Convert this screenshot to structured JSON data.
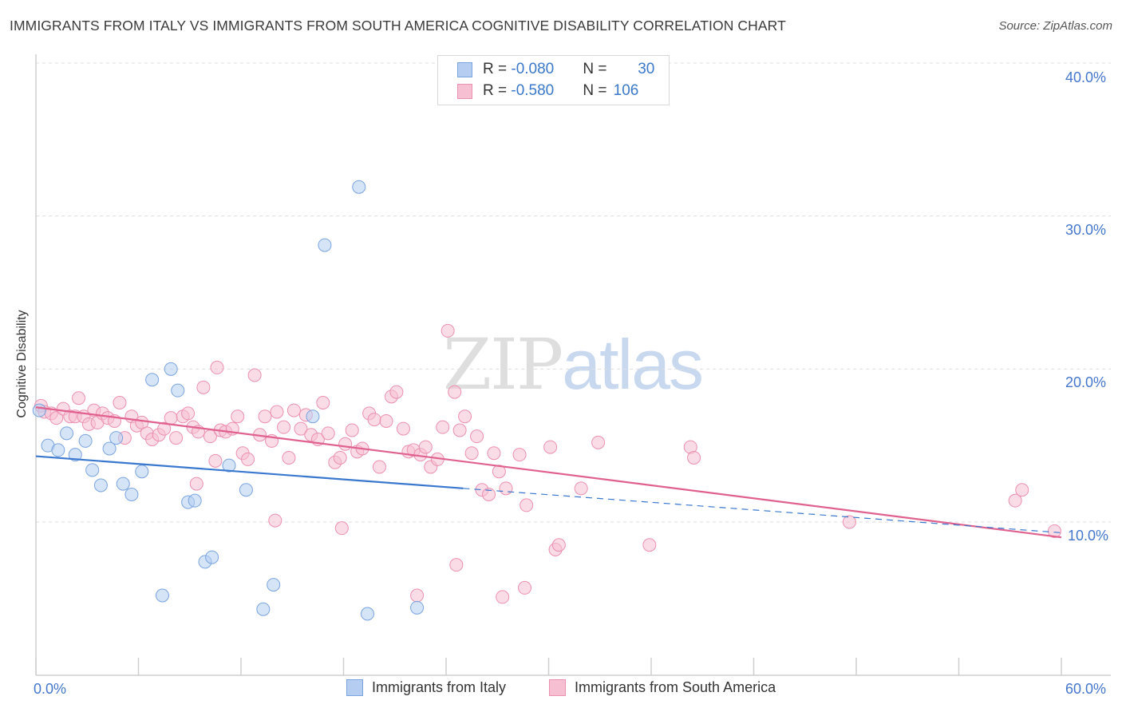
{
  "header": {
    "title": "IMMIGRANTS FROM ITALY VS IMMIGRANTS FROM SOUTH AMERICA COGNITIVE DISABILITY CORRELATION CHART",
    "source": "Source: ZipAtlas.com"
  },
  "watermark": {
    "zip": "ZIP",
    "atlas": "atlas"
  },
  "legend": {
    "italy": {
      "r_label": "R = ",
      "r_value": "-0.080",
      "n_label": "N = ",
      "n_value": "30"
    },
    "south_america": {
      "r_label": "R = ",
      "r_value": "-0.580",
      "n_label": "N = ",
      "n_value": "106"
    }
  },
  "colors": {
    "italy_fill": "#b5cdf0",
    "italy_stroke": "#7aa4df",
    "italy_line": "#3a78d0",
    "sa_fill": "#f6c0d2",
    "sa_stroke": "#ec90b0",
    "sa_line": "#e0608e",
    "grid": "#dddddd",
    "axis_text": "#4477cc"
  },
  "chart_data": {
    "type": "scatter",
    "title": "IMMIGRANTS FROM ITALY VS IMMIGRANTS FROM SOUTH AMERICA COGNITIVE DISABILITY CORRELATION CHART",
    "ylabel": "Cognitive Disability",
    "xlabel": "",
    "xlim": [
      0,
      60
    ],
    "ylim": [
      0,
      42
    ],
    "x_tick_labels": [
      "0.0%",
      "60.0%"
    ],
    "y_ticks": [
      10,
      20,
      30,
      40
    ],
    "y_tick_labels": [
      "10.0%",
      "20.0%",
      "30.0%",
      "40.0%"
    ],
    "grid": true,
    "legend_position": "top-center",
    "series": [
      {
        "name": "Immigrants from Italy",
        "trend": {
          "x0": 0,
          "y0": 14.3,
          "x1": 25,
          "y1": 12.2,
          "dashed_to_x": 60,
          "dashed_to_y": 9.3
        },
        "points": [
          [
            0.2,
            17.3
          ],
          [
            0.7,
            15.0
          ],
          [
            1.3,
            14.7
          ],
          [
            1.8,
            15.8
          ],
          [
            2.3,
            14.4
          ],
          [
            2.9,
            15.3
          ],
          [
            3.3,
            13.4
          ],
          [
            3.8,
            12.4
          ],
          [
            4.3,
            14.8
          ],
          [
            4.7,
            15.5
          ],
          [
            5.1,
            12.5
          ],
          [
            5.6,
            11.8
          ],
          [
            6.2,
            13.3
          ],
          [
            6.8,
            19.3
          ],
          [
            7.4,
            5.2
          ],
          [
            7.9,
            20.0
          ],
          [
            8.3,
            18.6
          ],
          [
            8.9,
            11.3
          ],
          [
            9.3,
            11.4
          ],
          [
            9.9,
            7.4
          ],
          [
            10.3,
            7.7
          ],
          [
            11.3,
            13.7
          ],
          [
            12.3,
            12.1
          ],
          [
            13.3,
            4.3
          ],
          [
            13.9,
            5.9
          ],
          [
            16.2,
            16.9
          ],
          [
            16.9,
            28.1
          ],
          [
            18.9,
            31.9
          ],
          [
            19.4,
            4.0
          ],
          [
            22.3,
            4.4
          ]
        ]
      },
      {
        "name": "Immigrants from South America",
        "trend": {
          "x0": 0,
          "y0": 17.5,
          "x1": 60,
          "y1": 9.0
        },
        "points": [
          [
            0.3,
            17.6
          ],
          [
            0.5,
            17.2
          ],
          [
            0.9,
            17.1
          ],
          [
            1.2,
            16.8
          ],
          [
            1.6,
            17.4
          ],
          [
            2.0,
            16.9
          ],
          [
            2.3,
            16.9
          ],
          [
            2.5,
            18.1
          ],
          [
            2.8,
            16.9
          ],
          [
            3.1,
            16.4
          ],
          [
            3.4,
            17.3
          ],
          [
            3.6,
            16.5
          ],
          [
            3.9,
            17.1
          ],
          [
            4.2,
            16.8
          ],
          [
            4.6,
            16.6
          ],
          [
            4.9,
            17.8
          ],
          [
            5.2,
            15.5
          ],
          [
            5.6,
            16.9
          ],
          [
            5.9,
            16.3
          ],
          [
            6.2,
            16.5
          ],
          [
            6.5,
            15.8
          ],
          [
            6.8,
            15.4
          ],
          [
            7.2,
            15.7
          ],
          [
            7.5,
            16.1
          ],
          [
            7.9,
            16.8
          ],
          [
            8.2,
            15.5
          ],
          [
            8.6,
            16.9
          ],
          [
            8.9,
            17.1
          ],
          [
            9.2,
            16.2
          ],
          [
            9.5,
            15.9
          ],
          [
            9.8,
            18.8
          ],
          [
            10.2,
            15.6
          ],
          [
            10.5,
            14.0
          ],
          [
            10.8,
            16.0
          ],
          [
            11.1,
            15.9
          ],
          [
            11.5,
            16.1
          ],
          [
            11.8,
            16.9
          ],
          [
            12.1,
            14.5
          ],
          [
            12.4,
            14.1
          ],
          [
            12.8,
            19.6
          ],
          [
            13.1,
            15.7
          ],
          [
            13.4,
            16.9
          ],
          [
            13.8,
            15.3
          ],
          [
            14.1,
            17.2
          ],
          [
            14.5,
            16.2
          ],
          [
            14.8,
            14.2
          ],
          [
            15.1,
            17.3
          ],
          [
            15.5,
            16.1
          ],
          [
            15.8,
            17.0
          ],
          [
            16.1,
            15.7
          ],
          [
            16.5,
            15.4
          ],
          [
            16.8,
            17.8
          ],
          [
            17.1,
            15.8
          ],
          [
            17.5,
            13.9
          ],
          [
            17.8,
            14.2
          ],
          [
            18.1,
            15.1
          ],
          [
            18.5,
            16.0
          ],
          [
            18.8,
            14.6
          ],
          [
            19.1,
            14.8
          ],
          [
            19.5,
            17.1
          ],
          [
            19.8,
            16.7
          ],
          [
            20.1,
            13.6
          ],
          [
            20.5,
            16.6
          ],
          [
            20.8,
            18.2
          ],
          [
            21.1,
            18.5
          ],
          [
            21.5,
            16.1
          ],
          [
            21.8,
            14.6
          ],
          [
            22.1,
            14.7
          ],
          [
            22.5,
            14.4
          ],
          [
            22.8,
            14.9
          ],
          [
            23.1,
            13.6
          ],
          [
            23.5,
            14.1
          ],
          [
            23.8,
            16.2
          ],
          [
            24.1,
            22.5
          ],
          [
            24.5,
            18.5
          ],
          [
            24.8,
            16.0
          ],
          [
            25.1,
            16.9
          ],
          [
            25.5,
            14.5
          ],
          [
            25.8,
            15.6
          ],
          [
            26.1,
            12.1
          ],
          [
            26.5,
            11.8
          ],
          [
            26.8,
            14.5
          ],
          [
            27.1,
            13.3
          ],
          [
            27.5,
            12.2
          ],
          [
            28.3,
            14.4
          ],
          [
            28.7,
            11.1
          ],
          [
            30.1,
            14.9
          ],
          [
            30.4,
            8.2
          ],
          [
            30.6,
            8.5
          ],
          [
            31.9,
            12.2
          ],
          [
            32.9,
            15.2
          ],
          [
            35.9,
            8.5
          ],
          [
            38.3,
            14.9
          ],
          [
            38.5,
            14.2
          ],
          [
            47.6,
            10.0
          ],
          [
            57.3,
            11.4
          ],
          [
            57.7,
            12.1
          ],
          [
            59.6,
            9.4
          ],
          [
            28.6,
            5.7
          ],
          [
            27.3,
            5.1
          ],
          [
            24.6,
            7.2
          ],
          [
            22.3,
            5.2
          ],
          [
            17.9,
            9.6
          ],
          [
            10.6,
            20.1
          ],
          [
            9.4,
            12.5
          ],
          [
            14.0,
            10.1
          ]
        ]
      }
    ]
  },
  "bottom_legend": {
    "italy": "Immigrants from Italy",
    "south_america": "Immigrants from South America"
  },
  "axis": {
    "ylabel": "Cognitive Disability",
    "x_left": "0.0%",
    "x_right": "60.0%",
    "y_ticks": [
      "10.0%",
      "20.0%",
      "30.0%",
      "40.0%"
    ]
  }
}
